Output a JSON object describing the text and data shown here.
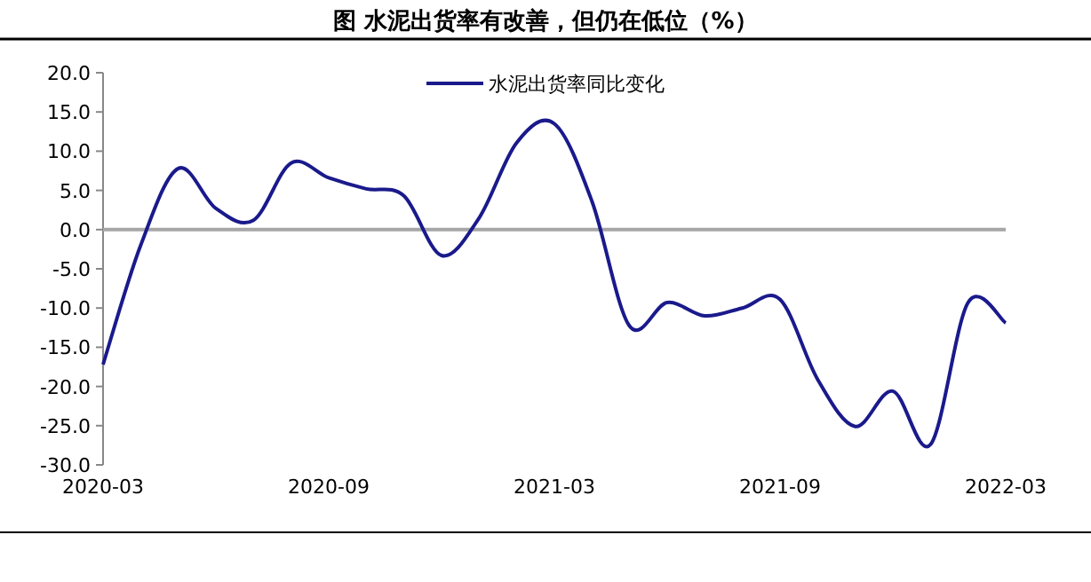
{
  "chart_data": {
    "type": "line",
    "title": "图    水泥出货率有改善，但仍在低位（%）",
    "x": [
      "2020-03",
      "2020-04",
      "2020-05",
      "2020-06",
      "2020-07",
      "2020-08",
      "2020-09",
      "2020-10",
      "2020-11",
      "2020-12",
      "2021-01",
      "2021-02",
      "2021-03",
      "2021-04",
      "2021-05",
      "2021-06",
      "2021-07",
      "2021-08",
      "2021-09",
      "2021-10",
      "2021-11",
      "2021-12",
      "2022-01",
      "2022-02",
      "2022-03"
    ],
    "series": [
      {
        "name": "水泥出货率同比变化",
        "color": "#1a1a8c",
        "values": [
          -17.2,
          -2,
          7.8,
          2.7,
          1.2,
          8.5,
          6.6,
          5.2,
          4.3,
          -3.3,
          1.5,
          11.1,
          13.5,
          3.6,
          -12.3,
          -9.3,
          -11.0,
          -10.0,
          -8.9,
          -19.1,
          -25.1,
          -20.6,
          -27.4,
          -9.3,
          -11.9
        ]
      }
    ],
    "xlim": [
      "2020-03",
      "2022-03"
    ],
    "xticks": [
      "2020-03",
      "2020-09",
      "2021-03",
      "2021-09",
      "2022-03"
    ],
    "ylim": [
      -30,
      20
    ],
    "yticks": [
      {
        "value": -30,
        "label": "-30.0"
      },
      {
        "value": -25,
        "label": "-25.0"
      },
      {
        "value": -20,
        "label": "-20.0"
      },
      {
        "value": -15,
        "label": "-15.0"
      },
      {
        "value": -10,
        "label": "-10.0"
      },
      {
        "value": -5,
        "label": "-5.0"
      },
      {
        "value": 0,
        "label": "0.0"
      },
      {
        "value": 5,
        "label": "5.0"
      },
      {
        "value": 10,
        "label": "10.0"
      },
      {
        "value": 15,
        "label": "15.0"
      },
      {
        "value": 20,
        "label": "20.0"
      }
    ],
    "ref_lines": [
      {
        "axis": "y",
        "value": 0,
        "color": "#a6a6a6"
      }
    ],
    "grid": false,
    "legend": "top",
    "marker": "none",
    "line_style": "solid"
  }
}
